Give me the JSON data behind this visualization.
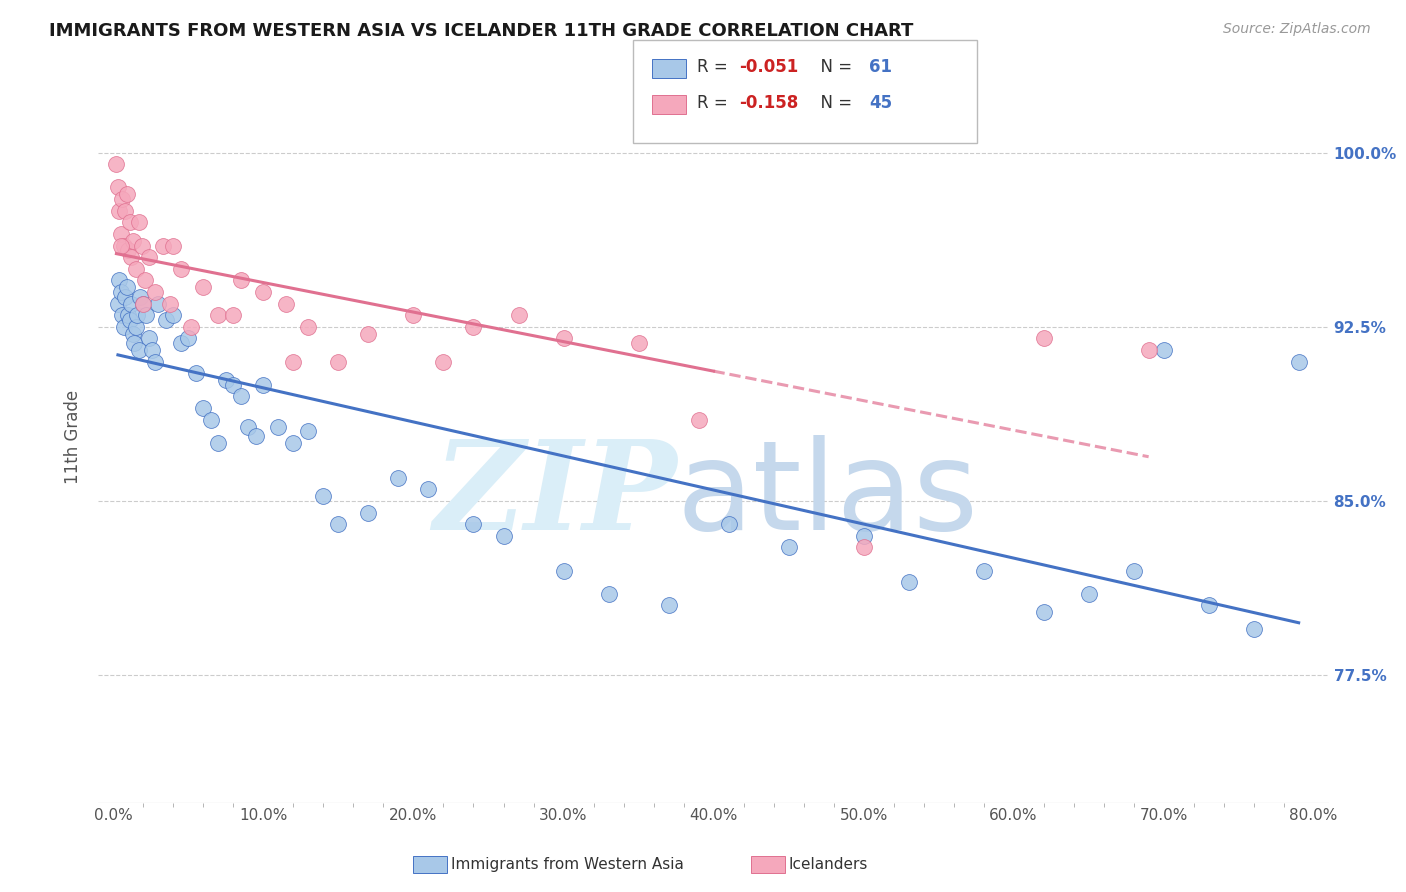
{
  "title": "IMMIGRANTS FROM WESTERN ASIA VS ICELANDER 11TH GRADE CORRELATION CHART",
  "source": "Source: ZipAtlas.com",
  "ylabel": "11th Grade",
  "label_blue": "Immigrants from Western Asia",
  "label_pink": "Icelanders",
  "x_tick_labels": [
    "0.0%",
    "",
    "",
    "",
    "",
    "10.0%",
    "",
    "",
    "",
    "",
    "20.0%",
    "",
    "",
    "",
    "",
    "30.0%",
    "",
    "",
    "",
    "",
    "40.0%",
    "",
    "",
    "",
    "",
    "50.0%",
    "",
    "",
    "",
    "",
    "60.0%",
    "",
    "",
    "",
    "",
    "70.0%",
    "",
    "",
    "",
    "",
    "80.0%"
  ],
  "x_tick_values": [
    0,
    2,
    4,
    6,
    8,
    10,
    12,
    14,
    16,
    18,
    20,
    22,
    24,
    26,
    28,
    30,
    32,
    34,
    36,
    38,
    40,
    42,
    44,
    46,
    48,
    50,
    52,
    54,
    56,
    58,
    60,
    62,
    64,
    66,
    68,
    70,
    72,
    74,
    76,
    78,
    80
  ],
  "x_major_ticks": [
    0,
    10,
    20,
    30,
    40,
    50,
    60,
    70,
    80
  ],
  "x_major_labels": [
    "0.0%",
    "10.0%",
    "20.0%",
    "30.0%",
    "40.0%",
    "50.0%",
    "60.0%",
    "70.0%",
    "80.0%"
  ],
  "y_tick_labels": [
    "100.0%",
    "92.5%",
    "85.0%",
    "77.5%"
  ],
  "y_tick_values": [
    100.0,
    92.5,
    85.0,
    77.5
  ],
  "xlim": [
    -1.0,
    81
  ],
  "ylim": [
    72.0,
    103.5
  ],
  "R_blue": -0.051,
  "N_blue": 61,
  "R_pink": -0.158,
  "N_pink": 45,
  "color_blue": "#a8c8e8",
  "color_pink": "#f5a8bc",
  "line_blue": "#4472c4",
  "line_pink": "#e07090",
  "blue_x": [
    0.3,
    0.4,
    0.5,
    0.6,
    0.7,
    0.8,
    0.9,
    1.0,
    1.1,
    1.2,
    1.3,
    1.4,
    1.5,
    1.6,
    1.7,
    1.8,
    2.0,
    2.2,
    2.4,
    2.6,
    2.8,
    3.0,
    3.5,
    4.0,
    4.5,
    5.0,
    5.5,
    6.0,
    6.5,
    7.0,
    7.5,
    8.0,
    8.5,
    9.0,
    9.5,
    10.0,
    11.0,
    12.0,
    13.0,
    14.0,
    15.0,
    17.0,
    19.0,
    21.0,
    24.0,
    26.0,
    30.0,
    33.0,
    37.0,
    41.0,
    45.0,
    50.0,
    53.0,
    58.0,
    62.0,
    65.0,
    68.0,
    70.0,
    73.0,
    76.0,
    79.0
  ],
  "blue_y": [
    93.5,
    94.5,
    94.0,
    93.0,
    92.5,
    93.8,
    94.2,
    93.0,
    92.8,
    93.5,
    92.2,
    91.8,
    92.5,
    93.0,
    91.5,
    93.8,
    93.5,
    93.0,
    92.0,
    91.5,
    91.0,
    93.5,
    92.8,
    93.0,
    91.8,
    92.0,
    90.5,
    89.0,
    88.5,
    87.5,
    90.2,
    90.0,
    89.5,
    88.2,
    87.8,
    90.0,
    88.2,
    87.5,
    88.0,
    85.2,
    84.0,
    84.5,
    86.0,
    85.5,
    84.0,
    83.5,
    82.0,
    81.0,
    80.5,
    84.0,
    83.0,
    83.5,
    81.5,
    82.0,
    80.2,
    81.0,
    82.0,
    91.5,
    80.5,
    79.5,
    91.0
  ],
  "pink_x": [
    0.2,
    0.3,
    0.4,
    0.5,
    0.6,
    0.7,
    0.8,
    0.9,
    1.0,
    1.1,
    1.2,
    1.3,
    1.5,
    1.7,
    1.9,
    2.1,
    2.4,
    2.8,
    3.3,
    3.8,
    4.5,
    5.2,
    6.0,
    7.0,
    8.5,
    10.0,
    11.5,
    13.0,
    15.0,
    17.0,
    20.0,
    22.0,
    24.0,
    27.0,
    30.0,
    35.0,
    39.0,
    50.0,
    62.0,
    69.0,
    12.0,
    8.0,
    4.0,
    2.0,
    0.5
  ],
  "pink_y": [
    99.5,
    98.5,
    97.5,
    96.5,
    98.0,
    96.0,
    97.5,
    98.2,
    95.8,
    97.0,
    95.5,
    96.2,
    95.0,
    97.0,
    96.0,
    94.5,
    95.5,
    94.0,
    96.0,
    93.5,
    95.0,
    92.5,
    94.2,
    93.0,
    94.5,
    94.0,
    93.5,
    92.5,
    91.0,
    92.2,
    93.0,
    91.0,
    92.5,
    93.0,
    92.0,
    91.8,
    88.5,
    83.0,
    92.0,
    91.5,
    91.0,
    93.0,
    96.0,
    93.5,
    96.0
  ],
  "pink_solid_end_x": 40.0
}
